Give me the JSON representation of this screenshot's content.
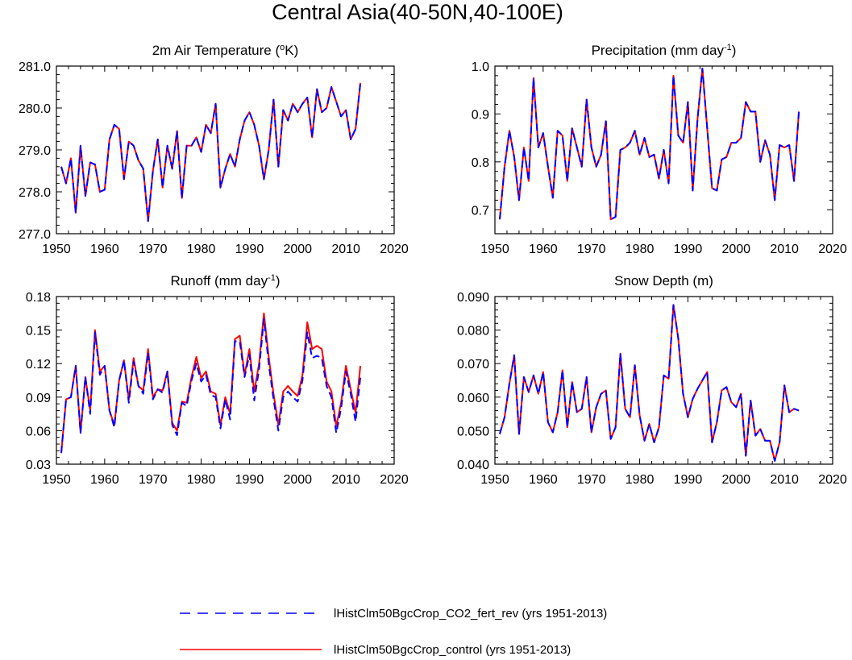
{
  "figure": {
    "title": "Central Asia(40-50N,40-100E)"
  },
  "legend": [
    {
      "label": "lHistClm50BgcCrop_CO2_fert_rev (yrs 1951-2013)",
      "color": "#0000ff",
      "dashed": true
    },
    {
      "label": "lHistClm50BgcCrop_control (yrs 1951-2013)",
      "color": "#ff0000",
      "dashed": false
    }
  ],
  "chart_data": [
    {
      "type": "line",
      "title": "2m Air Temperature (°K)",
      "title_base": "2m Air Temperature (",
      "title_sup": "o",
      "title_tail": "K)",
      "xlim": [
        1950,
        2020
      ],
      "ylim": [
        277.0,
        281.0
      ],
      "xticks": [
        "1950",
        "1960",
        "1970",
        "1980",
        "1990",
        "2000",
        "2010",
        "2020"
      ],
      "yticks": [
        "277.0",
        "278.0",
        "279.0",
        "280.0",
        "281.0"
      ],
      "x_start": 1951,
      "series": [
        {
          "color": "#ff0000",
          "dashed": false,
          "values": [
            278.6,
            278.2,
            278.8,
            277.5,
            279.1,
            277.9,
            278.7,
            278.65,
            278.0,
            278.05,
            279.25,
            279.6,
            279.5,
            278.3,
            279.2,
            279.1,
            278.75,
            278.55,
            277.3,
            278.5,
            279.25,
            278.1,
            279.1,
            278.55,
            279.45,
            277.85,
            279.1,
            279.1,
            279.3,
            278.95,
            279.6,
            279.4,
            280.1,
            278.1,
            278.55,
            278.9,
            278.6,
            279.25,
            279.7,
            279.9,
            279.6,
            279.1,
            278.3,
            279.0,
            280.2,
            278.6,
            279.95,
            279.7,
            280.1,
            279.9,
            280.1,
            280.25,
            279.3,
            280.45,
            279.9,
            280.0,
            280.5,
            280.15,
            279.8,
            279.95,
            279.25,
            279.5,
            280.6
          ]
        },
        {
          "color": "#0000ff",
          "dashed": true,
          "values": [
            278.6,
            278.2,
            278.8,
            277.5,
            279.1,
            277.9,
            278.7,
            278.65,
            278.0,
            278.05,
            279.25,
            279.6,
            279.5,
            278.3,
            279.2,
            279.1,
            278.75,
            278.55,
            277.3,
            278.5,
            279.25,
            278.1,
            279.1,
            278.55,
            279.45,
            277.85,
            279.1,
            279.1,
            279.3,
            278.95,
            279.6,
            279.4,
            280.1,
            278.1,
            278.55,
            278.9,
            278.6,
            279.25,
            279.7,
            279.9,
            279.6,
            279.1,
            278.3,
            279.0,
            280.2,
            278.6,
            279.95,
            279.7,
            280.1,
            279.9,
            280.1,
            280.25,
            279.3,
            280.45,
            279.9,
            280.0,
            280.5,
            280.15,
            279.8,
            279.95,
            279.25,
            279.5,
            280.6
          ]
        }
      ]
    },
    {
      "type": "line",
      "title": "Precipitation (mm day-1)",
      "title_base": "Precipitation (mm day",
      "title_sup": "-1",
      "title_tail": ")",
      "xlim": [
        1950,
        2020
      ],
      "ylim": [
        0.65,
        1.0
      ],
      "xticks": [
        "1950",
        "1960",
        "1970",
        "1980",
        "1990",
        "2000",
        "2010",
        "2020"
      ],
      "yticks": [
        "0.7",
        "0.8",
        "0.9",
        "1.0"
      ],
      "x_start": 1951,
      "series": [
        {
          "color": "#ff0000",
          "dashed": false,
          "values": [
            0.68,
            0.79,
            0.865,
            0.81,
            0.72,
            0.83,
            0.76,
            0.975,
            0.83,
            0.86,
            0.79,
            0.725,
            0.865,
            0.855,
            0.76,
            0.87,
            0.83,
            0.79,
            0.93,
            0.83,
            0.79,
            0.815,
            0.885,
            0.68,
            0.685,
            0.825,
            0.83,
            0.84,
            0.865,
            0.815,
            0.85,
            0.81,
            0.815,
            0.765,
            0.825,
            0.755,
            0.98,
            0.855,
            0.84,
            0.925,
            0.74,
            0.89,
            0.995,
            0.87,
            0.745,
            0.74,
            0.805,
            0.81,
            0.84,
            0.84,
            0.85,
            0.925,
            0.905,
            0.905,
            0.8,
            0.845,
            0.815,
            0.72,
            0.835,
            0.83,
            0.835,
            0.76,
            0.905
          ]
        },
        {
          "color": "#0000ff",
          "dashed": true,
          "values": [
            0.68,
            0.79,
            0.865,
            0.81,
            0.72,
            0.83,
            0.76,
            0.975,
            0.83,
            0.86,
            0.79,
            0.725,
            0.865,
            0.855,
            0.76,
            0.87,
            0.83,
            0.79,
            0.93,
            0.83,
            0.79,
            0.815,
            0.885,
            0.68,
            0.685,
            0.825,
            0.83,
            0.84,
            0.865,
            0.815,
            0.85,
            0.81,
            0.815,
            0.765,
            0.825,
            0.755,
            0.98,
            0.855,
            0.84,
            0.925,
            0.74,
            0.89,
            0.995,
            0.87,
            0.745,
            0.74,
            0.805,
            0.81,
            0.84,
            0.84,
            0.85,
            0.925,
            0.905,
            0.905,
            0.8,
            0.845,
            0.815,
            0.72,
            0.835,
            0.83,
            0.835,
            0.76,
            0.905
          ]
        }
      ]
    },
    {
      "type": "line",
      "title": "Runoff (mm day-1)",
      "title_base": "Runoff (mm day",
      "title_sup": "-1",
      "title_tail": ")",
      "xlim": [
        1950,
        2020
      ],
      "ylim": [
        0.03,
        0.18
      ],
      "xticks": [
        "1950",
        "1960",
        "1970",
        "1980",
        "1990",
        "2000",
        "2010",
        "2020"
      ],
      "yticks": [
        "0.03",
        "0.06",
        "0.09",
        "0.12",
        "0.15",
        "0.18"
      ],
      "x_start": 1951,
      "series": [
        {
          "color": "#ff0000",
          "dashed": false,
          "values": [
            0.04,
            0.088,
            0.09,
            0.118,
            0.058,
            0.108,
            0.078,
            0.15,
            0.113,
            0.118,
            0.078,
            0.065,
            0.105,
            0.123,
            0.088,
            0.125,
            0.1,
            0.096,
            0.133,
            0.09,
            0.097,
            0.096,
            0.113,
            0.067,
            0.06,
            0.086,
            0.085,
            0.108,
            0.126,
            0.107,
            0.113,
            0.095,
            0.093,
            0.065,
            0.09,
            0.075,
            0.142,
            0.145,
            0.11,
            0.133,
            0.095,
            0.12,
            0.165,
            0.126,
            0.093,
            0.065,
            0.095,
            0.1,
            0.095,
            0.091,
            0.11,
            0.157,
            0.133,
            0.136,
            0.133,
            0.104,
            0.095,
            0.064,
            0.085,
            0.118,
            0.097,
            0.076,
            0.118
          ]
        },
        {
          "color": "#0000ff",
          "dashed": true,
          "values": [
            0.04,
            0.088,
            0.09,
            0.118,
            0.058,
            0.108,
            0.075,
            0.148,
            0.11,
            0.118,
            0.078,
            0.063,
            0.105,
            0.123,
            0.085,
            0.122,
            0.1,
            0.093,
            0.13,
            0.088,
            0.097,
            0.094,
            0.113,
            0.065,
            0.056,
            0.085,
            0.082,
            0.105,
            0.12,
            0.104,
            0.11,
            0.092,
            0.09,
            0.062,
            0.088,
            0.07,
            0.14,
            0.14,
            0.108,
            0.128,
            0.087,
            0.115,
            0.16,
            0.12,
            0.088,
            0.06,
            0.09,
            0.095,
            0.09,
            0.086,
            0.105,
            0.148,
            0.125,
            0.127,
            0.125,
            0.1,
            0.09,
            0.058,
            0.08,
            0.113,
            0.093,
            0.068,
            0.108
          ]
        }
      ]
    },
    {
      "type": "line",
      "title": "Snow Depth (m)",
      "title_base": "Snow Depth (m)",
      "title_sup": "",
      "title_tail": "",
      "xlim": [
        1950,
        2020
      ],
      "ylim": [
        0.04,
        0.09
      ],
      "xticks": [
        "1950",
        "1960",
        "1970",
        "1980",
        "1990",
        "2000",
        "2010",
        "2020"
      ],
      "yticks": [
        "0.040",
        "0.050",
        "0.060",
        "0.070",
        "0.080",
        "0.090"
      ],
      "x_start": 1951,
      "series": [
        {
          "color": "#ff0000",
          "dashed": false,
          "values": [
            0.049,
            0.054,
            0.064,
            0.0725,
            0.049,
            0.066,
            0.0615,
            0.0665,
            0.061,
            0.0675,
            0.0525,
            0.0495,
            0.0555,
            0.068,
            0.051,
            0.0645,
            0.0555,
            0.0565,
            0.066,
            0.0495,
            0.057,
            0.061,
            0.062,
            0.0475,
            0.051,
            0.073,
            0.0565,
            0.054,
            0.0695,
            0.0545,
            0.047,
            0.052,
            0.0465,
            0.051,
            0.0665,
            0.0655,
            0.0875,
            0.0775,
            0.061,
            0.054,
            0.0595,
            0.0625,
            0.065,
            0.0675,
            0.0465,
            0.0525,
            0.062,
            0.063,
            0.0585,
            0.057,
            0.061,
            0.0425,
            0.059,
            0.0485,
            0.0505,
            0.047,
            0.047,
            0.041,
            0.0465,
            0.0635,
            0.0555,
            0.0565,
            0.056
          ]
        },
        {
          "color": "#0000ff",
          "dashed": true,
          "values": [
            0.049,
            0.054,
            0.064,
            0.0725,
            0.049,
            0.066,
            0.0615,
            0.0665,
            0.061,
            0.0675,
            0.0525,
            0.0495,
            0.0555,
            0.068,
            0.051,
            0.0645,
            0.0555,
            0.0565,
            0.066,
            0.0495,
            0.057,
            0.061,
            0.062,
            0.0475,
            0.051,
            0.073,
            0.0565,
            0.054,
            0.0695,
            0.0545,
            0.047,
            0.052,
            0.0465,
            0.051,
            0.0665,
            0.0655,
            0.0875,
            0.0775,
            0.061,
            0.054,
            0.0595,
            0.0625,
            0.065,
            0.0675,
            0.0465,
            0.0525,
            0.062,
            0.063,
            0.0585,
            0.057,
            0.061,
            0.0425,
            0.059,
            0.0485,
            0.0505,
            0.047,
            0.047,
            0.041,
            0.0465,
            0.0635,
            0.0555,
            0.0565,
            0.056
          ]
        }
      ]
    }
  ]
}
